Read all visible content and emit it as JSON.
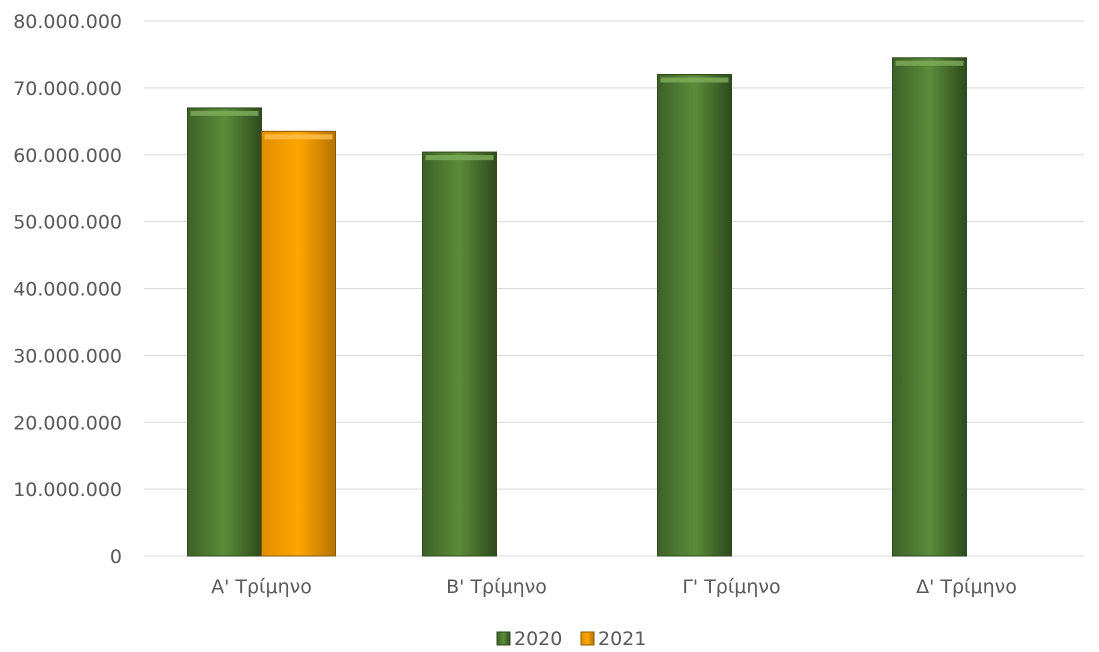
{
  "chart_data": {
    "type": "bar",
    "categories": [
      "Α' Τρίμηνο",
      "Β' Τρίμηνο",
      "Γ' Τρίμηνο",
      "Δ' Τρίμηνο"
    ],
    "series": [
      {
        "name": "2020",
        "values": [
          67000000,
          60400000,
          72000000,
          74500000
        ],
        "color": "#548235"
      },
      {
        "name": "2021",
        "values": [
          63500000,
          null,
          null,
          null
        ],
        "color": "#ffa500"
      }
    ],
    "yticks": [
      "0",
      "10.000.000",
      "20.000.000",
      "30.000.000",
      "40.000.000",
      "50.000.000",
      "60.000.000",
      "70.000.000",
      "80.000.000"
    ],
    "ylim": [
      0,
      80000000
    ],
    "grid": true,
    "legend_position": "bottom",
    "title": "",
    "xlabel": "",
    "ylabel": ""
  }
}
